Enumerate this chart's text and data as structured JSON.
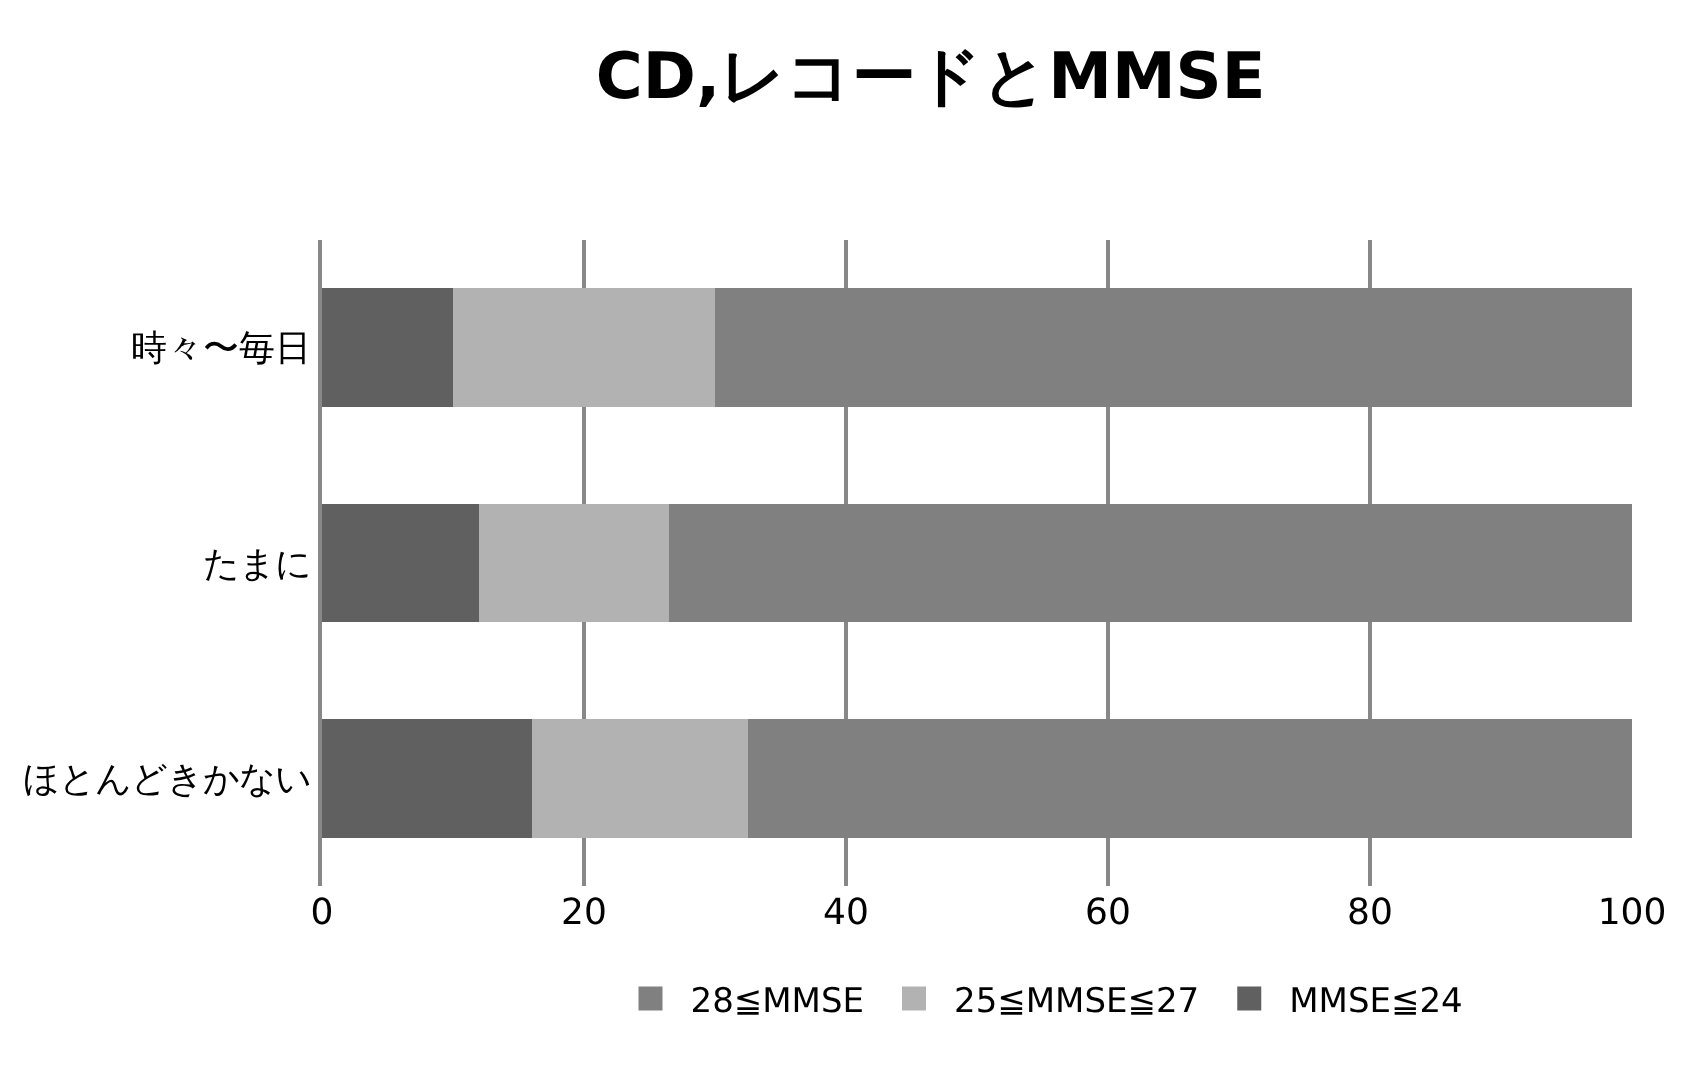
{
  "chart_data": {
    "type": "bar",
    "title": "CD,レコードとMMSE",
    "orientation": "horizontal",
    "stacked": true,
    "categories": [
      "時々〜毎日",
      "たまに",
      "ほとんどきかない"
    ],
    "series": [
      {
        "name": "MMSE≦24",
        "color": "#606060",
        "values": [
          10,
          12,
          16
        ]
      },
      {
        "name": "25≦MMSE≦27",
        "color": "#b2b2b2",
        "values": [
          20,
          14.5,
          16.5
        ]
      },
      {
        "name": "28≦MMSE",
        "color": "#808080",
        "values": [
          70,
          73.5,
          67.5
        ]
      }
    ],
    "xlim": [
      0,
      100
    ],
    "xticks": [
      0,
      20,
      40,
      60,
      80,
      100
    ],
    "grid": "x",
    "legend": "bottom"
  }
}
